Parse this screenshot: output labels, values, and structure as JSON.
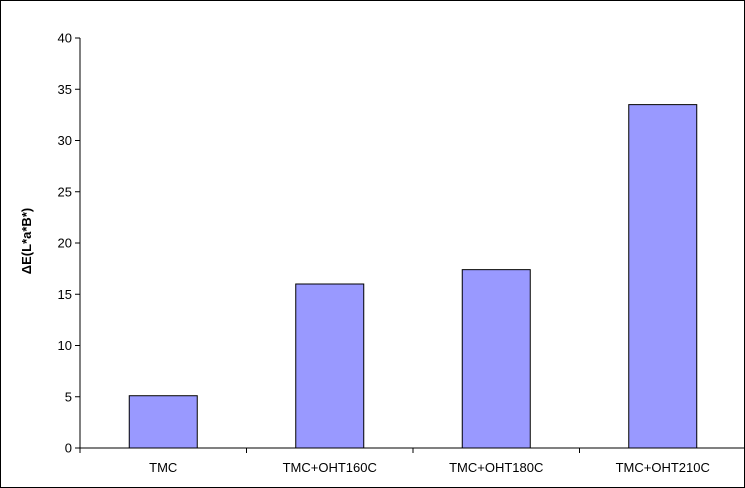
{
  "chart_data": {
    "type": "bar",
    "title": "",
    "xlabel": "",
    "ylabel": "ΔE(L*a*B*)",
    "categories": [
      "TMC",
      "TMC+OHT160C",
      "TMC+OHT180C",
      "TMC+OHT210C"
    ],
    "values": [
      5.1,
      16.0,
      17.4,
      33.5
    ],
    "ylim": [
      0,
      40
    ],
    "yticks": [
      "0",
      "5",
      "10",
      "15",
      "20",
      "25",
      "30",
      "35",
      "40"
    ],
    "grid": false,
    "legend": "none",
    "colors": {
      "bar_fill": "#9999ff",
      "bar_stroke": "#000000",
      "axis": "#000000",
      "frame": "#000000"
    }
  }
}
